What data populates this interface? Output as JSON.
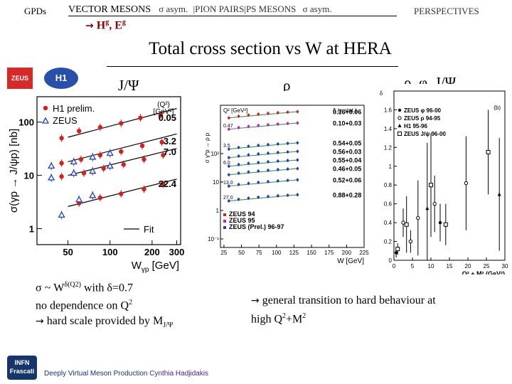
{
  "nav": {
    "gpds": "GPDs",
    "vector": "VECTOR MESONS",
    "sigma_asym1": "σ asym.",
    "pion_pairs": "|PION PAIRS|",
    "ps_mesons": "PS MESONS",
    "sigma_asym2": "σ asym.",
    "perspectives": "PERSPECTIVES",
    "sub_arrow": "→",
    "sub_hg": "H",
    "sub_hg_sup": "g",
    "sub_eg": ", E",
    "sub_eg_sup": "g"
  },
  "title": "Total cross section vs W at HERA",
  "plot_labels": {
    "jpsi": "J/Ψ",
    "rho": "ρ",
    "all": "ρ, φ, J/Ψ"
  },
  "logos": {
    "zeus": "ZEUS",
    "h1": "H1",
    "infn": "INFN Frascati"
  },
  "left_text": {
    "line1_sigma": "σ",
    "line1_rest": " ~ W",
    "line1_sup": "δ(Q2)",
    "line1_with": "  with δ=0.7",
    "line2": "no dependence on Q",
    "line2_sup": "2",
    "line3_arrow": "→",
    "line3": " hard scale provided by M",
    "line3_sub": "J/Ψ"
  },
  "right_text": {
    "arrow": "→",
    "line1": " general transition to hard behaviour at",
    "line2": "high Q",
    "line2_sup1": "2",
    "line2_mid": "+M",
    "line2_sup2": "2"
  },
  "footer": {
    "text": "Deeply Virtual Meson Production",
    "author": "Cynthia Hadjidakis"
  },
  "colors": {
    "h1": "#d42020",
    "zeus": "#2040c0",
    "fit": "#000000",
    "accent": "#8b0000"
  },
  "chart_data": [
    {
      "type": "scatter",
      "ylabel": "σ(γp → J/ψp) [nb]",
      "xlabel": "W",
      "xlabel_sub": "γp",
      "xlabel_unit": "[GeV]",
      "xlim": [
        30,
        320
      ],
      "ylim": [
        0.5,
        300
      ],
      "xticks": [
        50,
        100,
        200,
        300
      ],
      "yticks": [
        {
          "v": 1,
          "label": "1"
        },
        {
          "v": 10,
          "label": "10"
        },
        {
          "v": 100,
          "label": "100"
        }
      ],
      "legend": [
        {
          "name": "H1 prelim.",
          "marker": "circle"
        },
        {
          "name": "ZEUS",
          "marker": "triangle"
        },
        {
          "name": "Fit",
          "marker": "line"
        }
      ],
      "q2_header": "(Q²)",
      "q2_unit": "[GeV²]",
      "q2_labels": [
        {
          "label": "0.05",
          "y": 105
        },
        {
          "label": "3.2",
          "y": 38
        },
        {
          "label": "7.0",
          "y": 24
        },
        {
          "label": "22.4",
          "y": 6.0
        }
      ],
      "fits": [
        {
          "w": [
            50,
            300
          ],
          "y": [
            52,
            180
          ]
        },
        {
          "w": [
            50,
            300
          ],
          "y": [
            18,
            60
          ]
        },
        {
          "w": [
            50,
            300
          ],
          "y": [
            10,
            32
          ]
        },
        {
          "w": [
            50,
            300
          ],
          "y": [
            2.6,
            8.5
          ]
        }
      ],
      "series": [
        {
          "name": "H1 prelim.",
          "marker": "circle",
          "points": [
            {
              "x": 45,
              "y": 50
            },
            {
              "x": 60,
              "y": 68
            },
            {
              "x": 85,
              "y": 80
            },
            {
              "x": 120,
              "y": 95
            },
            {
              "x": 165,
              "y": 120
            },
            {
              "x": 230,
              "y": 135
            },
            {
              "x": 45,
              "y": 17
            },
            {
              "x": 62,
              "y": 20
            },
            {
              "x": 85,
              "y": 24
            },
            {
              "x": 120,
              "y": 28
            },
            {
              "x": 170,
              "y": 36
            },
            {
              "x": 235,
              "y": 42
            },
            {
              "x": 45,
              "y": 9.5
            },
            {
              "x": 65,
              "y": 11
            },
            {
              "x": 90,
              "y": 13.5
            },
            {
              "x": 125,
              "y": 16
            },
            {
              "x": 175,
              "y": 20
            },
            {
              "x": 240,
              "y": 24
            },
            {
              "x": 60,
              "y": 3.0
            },
            {
              "x": 85,
              "y": 3.8
            },
            {
              "x": 120,
              "y": 4.5
            },
            {
              "x": 175,
              "y": 5.5
            },
            {
              "x": 240,
              "y": 6.8
            }
          ]
        },
        {
          "name": "ZEUS",
          "marker": "triangle",
          "points": [
            {
              "x": 38,
              "y": 15
            },
            {
              "x": 55,
              "y": 18
            },
            {
              "x": 75,
              "y": 22
            },
            {
              "x": 100,
              "y": 26
            },
            {
              "x": 38,
              "y": 9
            },
            {
              "x": 55,
              "y": 11
            },
            {
              "x": 75,
              "y": 12
            },
            {
              "x": 100,
              "y": 15
            },
            {
              "x": 45,
              "y": 1.8
            },
            {
              "x": 60,
              "y": 3.5
            },
            {
              "x": 75,
              "y": 4.2
            }
          ]
        }
      ]
    },
    {
      "type": "scatter",
      "ylabel": "σ γ*p → ρ p",
      "xlabel": "W [GeV]",
      "xlim": [
        20,
        225
      ],
      "ylim": [
        0.05,
        5000
      ],
      "xticks": [
        25,
        50,
        75,
        100,
        125,
        150,
        175,
        200,
        225
      ],
      "yticks": [
        {
          "v": 0.1,
          "label": "10⁻¹"
        },
        {
          "v": 1,
          "label": "1"
        },
        {
          "v": 10,
          "label": "10"
        },
        {
          "v": 100,
          "label": "10²"
        }
      ],
      "header": {
        "q2": "Q² [GeV²]",
        "delta": "δ (± stat.)"
      },
      "legend": [
        {
          "name": "ZEUS 94",
          "marker": "square",
          "color": "#d42020"
        },
        {
          "name": "ZEUS 95",
          "marker": "triangle-down",
          "color": "#c020c0"
        },
        {
          "name": "ZEUS (Prel.) 96-97",
          "marker": "circle",
          "color": "#2040c0"
        }
      ],
      "rows": [
        {
          "q2": "",
          "delta": "0.16+0.06",
          "y": 2500,
          "color": "#d42020"
        },
        {
          "q2": "0.47",
          "delta": "0.10+0.03",
          "y": 1000,
          "color": "#c020c0"
        },
        {
          "q2": "3.5",
          "delta": "0.54+0.05",
          "y": 200,
          "color": "#2040c0"
        },
        {
          "q2": "",
          "delta": "0.56+0.03",
          "y": 100,
          "color": "#2040c0"
        },
        {
          "q2": "6.0",
          "delta": "0.55+0.04",
          "y": 50,
          "color": "#2040c0"
        },
        {
          "q2": "",
          "delta": "0.46+0.05",
          "y": 25,
          "color": "#2040c0"
        },
        {
          "q2": "13.0",
          "delta": "0.52+0.06",
          "y": 10,
          "color": "#2040c0"
        },
        {
          "q2": "27.0",
          "delta": "0.88+0.28",
          "y": 3,
          "color": "#2040c0"
        }
      ]
    },
    {
      "type": "scatter",
      "ylabel": "δ",
      "xlabel": "Q² + M² (GeV²)",
      "xlim": [
        0,
        30
      ],
      "ylim": [
        0,
        1.8
      ],
      "xticks": [
        0,
        5,
        10,
        15,
        20,
        25,
        30
      ],
      "yticks": [
        0,
        0.2,
        0.4,
        0.6,
        0.8,
        1,
        1.2,
        1.4,
        1.6
      ],
      "tag": "(b)",
      "legend": [
        {
          "name": "ZEUS φ 96-00",
          "marker": "circle-filled"
        },
        {
          "name": "ZEUS ρ 94-95",
          "marker": "circle-open"
        },
        {
          "name": "H1 95-96",
          "marker": "triangle"
        },
        {
          "name": "ZEUS J/ψ 96-00",
          "marker": "square-open"
        }
      ],
      "points": [
        {
          "x": 0.6,
          "y": 0.08,
          "e": 0.05,
          "m": "circle-filled"
        },
        {
          "x": 1.0,
          "y": 0.12,
          "e": 0.06,
          "m": "square-open"
        },
        {
          "x": 2.5,
          "y": 0.4,
          "e": 0.15,
          "m": "circle-open"
        },
        {
          "x": 3.4,
          "y": 0.38,
          "e": 0.3,
          "m": "square-open"
        },
        {
          "x": 4.5,
          "y": 0.2,
          "e": 0.12,
          "m": "circle-open"
        },
        {
          "x": 6.5,
          "y": 0.45,
          "e": 0.4,
          "m": "circle-open"
        },
        {
          "x": 9.0,
          "y": 0.55,
          "e": 0.7,
          "m": "triangle"
        },
        {
          "x": 10.0,
          "y": 0.8,
          "e": 0.55,
          "m": "square-open"
        },
        {
          "x": 11.0,
          "y": 0.6,
          "e": 0.3,
          "m": "circle-open"
        },
        {
          "x": 12.5,
          "y": 0.4,
          "e": 0.2,
          "m": "circle-filled"
        },
        {
          "x": 14.0,
          "y": 0.38,
          "e": 0.22,
          "m": "square-open"
        },
        {
          "x": 19.5,
          "y": 0.82,
          "e": 0.5,
          "m": "circle-open"
        },
        {
          "x": 25.5,
          "y": 1.15,
          "e": 0.45,
          "m": "square-open"
        },
        {
          "x": 28.5,
          "y": 0.7,
          "e": 0.6,
          "m": "triangle"
        }
      ]
    }
  ]
}
